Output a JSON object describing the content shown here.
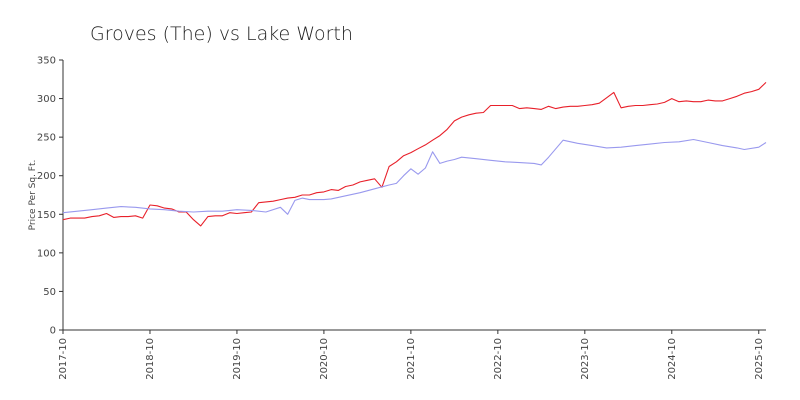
{
  "chart_data": {
    "type": "line",
    "title": "Groves (The) vs Lake Worth",
    "xlabel": "",
    "ylabel": "Price Per Sq. Ft.",
    "ylim": [
      0,
      350
    ],
    "yticks": [
      0,
      50,
      100,
      150,
      200,
      250,
      300,
      350
    ],
    "xticks": [
      "2017-10",
      "2018-10",
      "2019-10",
      "2020-10",
      "2021-10",
      "2022-10",
      "2023-10",
      "2024-10",
      "2025-10"
    ],
    "xrange": [
      "2017-10",
      "2025-11"
    ],
    "grid": false,
    "legend": "none",
    "series": [
      {
        "color": "#e8202a",
        "points": [
          [
            "2017-10",
            143
          ],
          [
            "2017-11",
            145
          ],
          [
            "2018-01",
            145
          ],
          [
            "2018-02",
            147
          ],
          [
            "2018-03",
            148
          ],
          [
            "2018-04",
            151
          ],
          [
            "2018-05",
            146
          ],
          [
            "2018-06",
            147
          ],
          [
            "2018-07",
            147
          ],
          [
            "2018-08",
            148
          ],
          [
            "2018-09",
            145
          ],
          [
            "2018-10",
            162
          ],
          [
            "2018-11",
            161
          ],
          [
            "2018-12",
            158
          ],
          [
            "2019-01",
            157
          ],
          [
            "2019-02",
            153
          ],
          [
            "2019-03",
            153
          ],
          [
            "2019-04",
            143
          ],
          [
            "2019-05",
            135
          ],
          [
            "2019-06",
            147
          ],
          [
            "2019-07",
            148
          ],
          [
            "2019-08",
            148
          ],
          [
            "2019-09",
            152
          ],
          [
            "2019-10",
            151
          ],
          [
            "2019-11",
            152
          ],
          [
            "2019-12",
            153
          ],
          [
            "2020-01",
            165
          ],
          [
            "2020-02",
            166
          ],
          [
            "2020-03",
            167
          ],
          [
            "2020-04",
            169
          ],
          [
            "2020-05",
            171
          ],
          [
            "2020-06",
            172
          ],
          [
            "2020-07",
            175
          ],
          [
            "2020-08",
            175
          ],
          [
            "2020-09",
            178
          ],
          [
            "2020-10",
            179
          ],
          [
            "2020-11",
            182
          ],
          [
            "2020-12",
            181
          ],
          [
            "2021-01",
            186
          ],
          [
            "2021-02",
            188
          ],
          [
            "2021-03",
            192
          ],
          [
            "2021-04",
            194
          ],
          [
            "2021-05",
            196
          ],
          [
            "2021-06",
            185
          ],
          [
            "2021-07",
            212
          ],
          [
            "2021-08",
            218
          ],
          [
            "2021-09",
            226
          ],
          [
            "2021-10",
            230
          ],
          [
            "2021-11",
            235
          ],
          [
            "2021-12",
            240
          ],
          [
            "2022-01",
            246
          ],
          [
            "2022-02",
            252
          ],
          [
            "2022-03",
            260
          ],
          [
            "2022-04",
            271
          ],
          [
            "2022-05",
            276
          ],
          [
            "2022-06",
            279
          ],
          [
            "2022-07",
            281
          ],
          [
            "2022-08",
            282
          ],
          [
            "2022-09",
            291
          ],
          [
            "2022-10",
            291
          ],
          [
            "2022-11",
            291
          ],
          [
            "2022-12",
            291
          ],
          [
            "2023-01",
            287
          ],
          [
            "2023-02",
            288
          ],
          [
            "2023-03",
            287
          ],
          [
            "2023-04",
            286
          ],
          [
            "2023-05",
            290
          ],
          [
            "2023-06",
            287
          ],
          [
            "2023-07",
            289
          ],
          [
            "2023-08",
            290
          ],
          [
            "2023-09",
            290
          ],
          [
            "2023-10",
            291
          ],
          [
            "2023-11",
            292
          ],
          [
            "2023-12",
            294
          ],
          [
            "2024-01",
            301
          ],
          [
            "2024-02",
            308
          ],
          [
            "2024-03",
            288
          ],
          [
            "2024-04",
            290
          ],
          [
            "2024-05",
            291
          ],
          [
            "2024-06",
            291
          ],
          [
            "2024-07",
            292
          ],
          [
            "2024-08",
            293
          ],
          [
            "2024-09",
            295
          ],
          [
            "2024-10",
            300
          ],
          [
            "2024-11",
            296
          ],
          [
            "2024-12",
            297
          ],
          [
            "2025-01",
            296
          ],
          [
            "2025-02",
            296
          ],
          [
            "2025-03",
            298
          ],
          [
            "2025-04",
            297
          ],
          [
            "2025-05",
            297
          ],
          [
            "2025-06",
            300
          ],
          [
            "2025-07",
            303
          ],
          [
            "2025-08",
            307
          ],
          [
            "2025-09",
            309
          ],
          [
            "2025-10",
            312
          ],
          [
            "2025-11",
            321
          ]
        ]
      },
      {
        "color": "#9999ee",
        "points": [
          [
            "2017-10",
            152
          ],
          [
            "2017-12",
            154
          ],
          [
            "2018-02",
            156
          ],
          [
            "2018-04",
            158
          ],
          [
            "2018-06",
            160
          ],
          [
            "2018-08",
            159
          ],
          [
            "2018-10",
            157
          ],
          [
            "2018-12",
            156
          ],
          [
            "2019-02",
            154
          ],
          [
            "2019-04",
            153
          ],
          [
            "2019-06",
            154
          ],
          [
            "2019-08",
            154
          ],
          [
            "2019-10",
            156
          ],
          [
            "2019-12",
            155
          ],
          [
            "2020-02",
            153
          ],
          [
            "2020-04",
            159
          ],
          [
            "2020-05",
            150
          ],
          [
            "2020-06",
            168
          ],
          [
            "2020-07",
            171
          ],
          [
            "2020-08",
            169
          ],
          [
            "2020-10",
            169
          ],
          [
            "2020-11",
            170
          ],
          [
            "2021-01",
            174
          ],
          [
            "2021-03",
            178
          ],
          [
            "2021-05",
            183
          ],
          [
            "2021-07",
            188
          ],
          [
            "2021-08",
            190
          ],
          [
            "2021-09",
            200
          ],
          [
            "2021-10",
            209
          ],
          [
            "2021-11",
            202
          ],
          [
            "2021-12",
            210
          ],
          [
            "2022-01",
            231
          ],
          [
            "2022-02",
            216
          ],
          [
            "2022-03",
            219
          ],
          [
            "2022-04",
            221
          ],
          [
            "2022-05",
            224
          ],
          [
            "2022-07",
            222
          ],
          [
            "2022-09",
            220
          ],
          [
            "2022-11",
            218
          ],
          [
            "2023-01",
            217
          ],
          [
            "2023-03",
            216
          ],
          [
            "2023-04",
            214
          ],
          [
            "2023-05",
            224
          ],
          [
            "2023-07",
            246
          ],
          [
            "2023-09",
            242
          ],
          [
            "2023-11",
            239
          ],
          [
            "2024-01",
            236
          ],
          [
            "2024-03",
            237
          ],
          [
            "2024-05",
            239
          ],
          [
            "2024-07",
            241
          ],
          [
            "2024-09",
            243
          ],
          [
            "2024-11",
            244
          ],
          [
            "2025-01",
            247
          ],
          [
            "2025-03",
            243
          ],
          [
            "2025-05",
            239
          ],
          [
            "2025-07",
            236
          ],
          [
            "2025-08",
            234
          ],
          [
            "2025-10",
            237
          ],
          [
            "2025-11",
            243
          ]
        ]
      }
    ]
  }
}
